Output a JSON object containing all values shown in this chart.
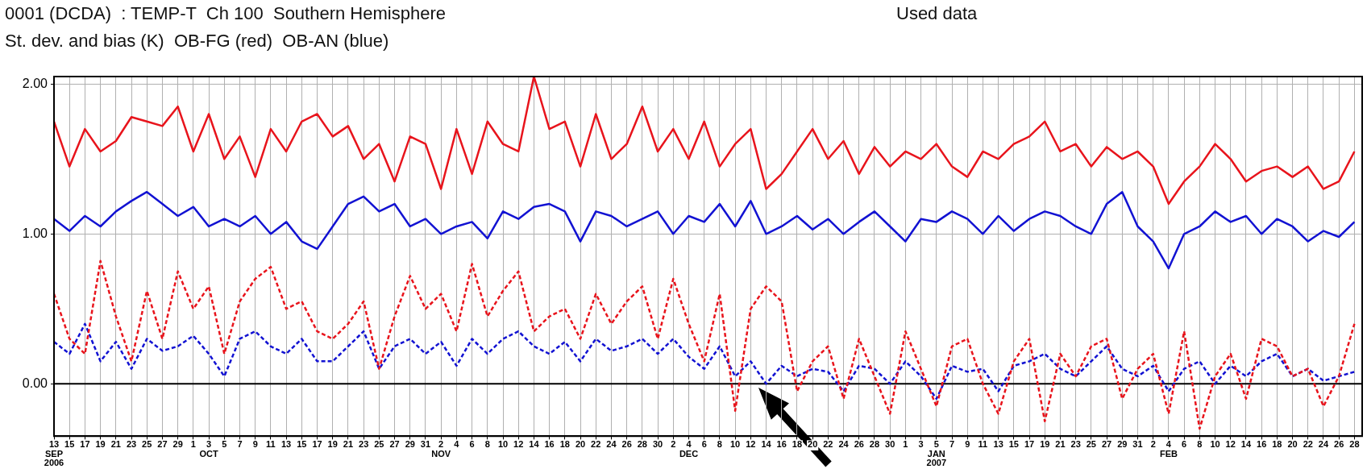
{
  "chart_data": {
    "type": "line",
    "title": "0001 (DCDA)  : TEMP-T  Ch 100  Southern Hemisphere",
    "subtitle": "St. dev. and bias (K)  OB-FG (red)  OB-AN (blue)",
    "annotations": [
      "Used data"
    ],
    "x": [
      "2006-09-13",
      "2006-09-15",
      "2006-09-17",
      "2006-09-19",
      "2006-09-21",
      "2006-09-23",
      "2006-09-25",
      "2006-09-27",
      "2006-09-29",
      "2006-10-01",
      "2006-10-03",
      "2006-10-05",
      "2006-10-07",
      "2006-10-09",
      "2006-10-11",
      "2006-10-13",
      "2006-10-15",
      "2006-10-17",
      "2006-10-19",
      "2006-10-21",
      "2006-10-23",
      "2006-10-25",
      "2006-10-27",
      "2006-10-29",
      "2006-10-31",
      "2006-11-02",
      "2006-11-04",
      "2006-11-06",
      "2006-11-08",
      "2006-11-10",
      "2006-11-12",
      "2006-11-14",
      "2006-11-16",
      "2006-11-18",
      "2006-11-20",
      "2006-11-22",
      "2006-11-24",
      "2006-11-26",
      "2006-11-28",
      "2006-11-30",
      "2006-12-02",
      "2006-12-04",
      "2006-12-06",
      "2006-12-08",
      "2006-12-10",
      "2006-12-12",
      "2006-12-14",
      "2006-12-16",
      "2006-12-18",
      "2006-12-20",
      "2006-12-22",
      "2006-12-24",
      "2006-12-26",
      "2006-12-28",
      "2006-12-30",
      "2007-01-01",
      "2007-01-03",
      "2007-01-05",
      "2007-01-07",
      "2007-01-09",
      "2007-01-11",
      "2007-01-13",
      "2007-01-15",
      "2007-01-17",
      "2007-01-19",
      "2007-01-21",
      "2007-01-23",
      "2007-01-25",
      "2007-01-27",
      "2007-01-29",
      "2007-01-31",
      "2007-02-02",
      "2007-02-04",
      "2007-02-06",
      "2007-02-08",
      "2007-02-10",
      "2007-02-12",
      "2007-02-14",
      "2007-02-16",
      "2007-02-18",
      "2007-02-20",
      "2007-02-22",
      "2007-02-24",
      "2007-02-26",
      "2007-02-28"
    ],
    "series": [
      {
        "color": "#e8141c",
        "line_style": "solid",
        "values": [
          1.75,
          1.45,
          1.7,
          1.55,
          1.62,
          1.78,
          1.75,
          1.72,
          1.85,
          1.55,
          1.8,
          1.5,
          1.65,
          1.38,
          1.7,
          1.55,
          1.75,
          1.8,
          1.65,
          1.72,
          1.5,
          1.6,
          1.35,
          1.65,
          1.6,
          1.3,
          1.7,
          1.4,
          1.75,
          1.6,
          1.55,
          2.05,
          1.7,
          1.75,
          1.45,
          1.8,
          1.5,
          1.6,
          1.85,
          1.55,
          1.7,
          1.5,
          1.75,
          1.45,
          1.6,
          1.7,
          1.3,
          1.4,
          1.55,
          1.7,
          1.5,
          1.62,
          1.4,
          1.58,
          1.45,
          1.55,
          1.5,
          1.6,
          1.45,
          1.38,
          1.55,
          1.5,
          1.6,
          1.65,
          1.75,
          1.55,
          1.6,
          1.45,
          1.58,
          1.5,
          1.55,
          1.45,
          1.2,
          1.35,
          1.45,
          1.6,
          1.5,
          1.35,
          1.42,
          1.45,
          1.38,
          1.45,
          1.3,
          1.35,
          1.55
        ]
      },
      {
        "color": "#1212d2",
        "line_style": "solid",
        "values": [
          1.1,
          1.02,
          1.12,
          1.05,
          1.15,
          1.22,
          1.28,
          1.2,
          1.12,
          1.18,
          1.05,
          1.1,
          1.05,
          1.12,
          1.0,
          1.08,
          0.95,
          0.9,
          1.05,
          1.2,
          1.25,
          1.15,
          1.2,
          1.05,
          1.1,
          1.0,
          1.05,
          1.08,
          0.97,
          1.15,
          1.1,
          1.18,
          1.2,
          1.15,
          0.95,
          1.15,
          1.12,
          1.05,
          1.1,
          1.15,
          1.0,
          1.12,
          1.08,
          1.2,
          1.05,
          1.22,
          1.0,
          1.05,
          1.12,
          1.03,
          1.1,
          1.0,
          1.08,
          1.15,
          1.05,
          0.95,
          1.1,
          1.08,
          1.15,
          1.1,
          1.0,
          1.12,
          1.02,
          1.1,
          1.15,
          1.12,
          1.05,
          1.0,
          1.2,
          1.28,
          1.05,
          0.95,
          0.77,
          1.0,
          1.05,
          1.15,
          1.08,
          1.12,
          1.0,
          1.1,
          1.05,
          0.95,
          1.02,
          0.98,
          1.08
        ]
      },
      {
        "color": "#e8141c",
        "line_style": "dashed",
        "values": [
          0.6,
          0.3,
          0.2,
          0.82,
          0.45,
          0.15,
          0.62,
          0.3,
          0.75,
          0.5,
          0.65,
          0.2,
          0.55,
          0.7,
          0.78,
          0.5,
          0.55,
          0.35,
          0.3,
          0.4,
          0.55,
          0.1,
          0.45,
          0.72,
          0.5,
          0.6,
          0.35,
          0.8,
          0.45,
          0.62,
          0.75,
          0.35,
          0.45,
          0.5,
          0.3,
          0.6,
          0.4,
          0.55,
          0.65,
          0.3,
          0.7,
          0.4,
          0.15,
          0.6,
          -0.18,
          0.5,
          0.65,
          0.55,
          -0.05,
          0.15,
          0.25,
          -0.1,
          0.3,
          0.05,
          -0.2,
          0.35,
          0.1,
          -0.15,
          0.25,
          0.3,
          0.0,
          -0.2,
          0.15,
          0.3,
          -0.25,
          0.2,
          0.05,
          0.25,
          0.3,
          -0.1,
          0.1,
          0.2,
          -0.2,
          0.35,
          -0.3,
          0.05,
          0.2,
          -0.1,
          0.3,
          0.25,
          0.05,
          0.1,
          -0.15,
          0.05,
          0.4
        ]
      },
      {
        "color": "#1212d2",
        "line_style": "dashed",
        "values": [
          0.28,
          0.2,
          0.4,
          0.15,
          0.28,
          0.1,
          0.3,
          0.22,
          0.25,
          0.32,
          0.2,
          0.05,
          0.3,
          0.35,
          0.25,
          0.2,
          0.3,
          0.15,
          0.15,
          0.25,
          0.35,
          0.1,
          0.25,
          0.3,
          0.2,
          0.28,
          0.12,
          0.3,
          0.2,
          0.3,
          0.35,
          0.25,
          0.2,
          0.28,
          0.15,
          0.3,
          0.22,
          0.25,
          0.3,
          0.2,
          0.3,
          0.18,
          0.1,
          0.25,
          0.05,
          0.15,
          0.0,
          0.12,
          0.05,
          0.1,
          0.08,
          -0.05,
          0.12,
          0.1,
          0.0,
          0.15,
          0.05,
          -0.1,
          0.12,
          0.08,
          0.1,
          -0.05,
          0.12,
          0.15,
          0.2,
          0.1,
          0.05,
          0.15,
          0.25,
          0.1,
          0.05,
          0.12,
          -0.05,
          0.1,
          0.15,
          0.0,
          0.12,
          0.05,
          0.15,
          0.2,
          0.05,
          0.1,
          0.02,
          0.05,
          0.08
        ]
      }
    ],
    "xlim": [
      "2006-09-13",
      "2007-03-01"
    ],
    "xticks": [
      {
        "value": "2006-09-13",
        "label": "13\nSEP\n2006"
      },
      {
        "value": "2006-09-15",
        "label": "15"
      },
      {
        "value": "2006-09-17",
        "label": "17"
      },
      {
        "value": "2006-09-19",
        "label": "19"
      },
      {
        "value": "2006-09-21",
        "label": "21"
      },
      {
        "value": "2006-09-23",
        "label": "23"
      },
      {
        "value": "2006-09-25",
        "label": "25"
      },
      {
        "value": "2006-09-27",
        "label": "27"
      },
      {
        "value": "2006-09-29",
        "label": "29"
      },
      {
        "value": "2006-10-01",
        "label": "1"
      },
      {
        "value": "2006-10-03",
        "label": "3\nOCT"
      },
      {
        "value": "2006-10-05",
        "label": "5"
      },
      {
        "value": "2006-10-07",
        "label": "7"
      },
      {
        "value": "2006-10-09",
        "label": "9"
      },
      {
        "value": "2006-10-11",
        "label": "11"
      },
      {
        "value": "2006-10-13",
        "label": "13"
      },
      {
        "value": "2006-10-15",
        "label": "15"
      },
      {
        "value": "2006-10-17",
        "label": "17"
      },
      {
        "value": "2006-10-19",
        "label": "19"
      },
      {
        "value": "2006-10-21",
        "label": "21"
      },
      {
        "value": "2006-10-23",
        "label": "23"
      },
      {
        "value": "2006-10-25",
        "label": "25"
      },
      {
        "value": "2006-10-27",
        "label": "27"
      },
      {
        "value": "2006-10-29",
        "label": "29"
      },
      {
        "value": "2006-10-31",
        "label": "31"
      },
      {
        "value": "2006-11-02",
        "label": "2\nNOV"
      },
      {
        "value": "2006-11-04",
        "label": "4"
      },
      {
        "value": "2006-11-06",
        "label": "6"
      },
      {
        "value": "2006-11-08",
        "label": "8"
      },
      {
        "value": "2006-11-10",
        "label": "10"
      },
      {
        "value": "2006-11-12",
        "label": "12"
      },
      {
        "value": "2006-11-14",
        "label": "14"
      },
      {
        "value": "2006-11-16",
        "label": "16"
      },
      {
        "value": "2006-11-18",
        "label": "18"
      },
      {
        "value": "2006-11-20",
        "label": "20"
      },
      {
        "value": "2006-11-22",
        "label": "22"
      },
      {
        "value": "2006-11-24",
        "label": "24"
      },
      {
        "value": "2006-11-26",
        "label": "26"
      },
      {
        "value": "2006-11-28",
        "label": "28"
      },
      {
        "value": "2006-11-30",
        "label": "30"
      },
      {
        "value": "2006-12-02",
        "label": "2"
      },
      {
        "value": "2006-12-04",
        "label": "4\nDEC"
      },
      {
        "value": "2006-12-06",
        "label": "6"
      },
      {
        "value": "2006-12-08",
        "label": "8"
      },
      {
        "value": "2006-12-10",
        "label": "10"
      },
      {
        "value": "2006-12-12",
        "label": "12"
      },
      {
        "value": "2006-12-14",
        "label": "14"
      },
      {
        "value": "2006-12-16",
        "label": "16"
      },
      {
        "value": "2006-12-18",
        "label": "18"
      },
      {
        "value": "2006-12-20",
        "label": "20"
      },
      {
        "value": "2006-12-22",
        "label": "22"
      },
      {
        "value": "2006-12-24",
        "label": "24"
      },
      {
        "value": "2006-12-26",
        "label": "26"
      },
      {
        "value": "2006-12-28",
        "label": "28"
      },
      {
        "value": "2006-12-30",
        "label": "30"
      },
      {
        "value": "2007-01-01",
        "label": "1"
      },
      {
        "value": "2007-01-03",
        "label": "3"
      },
      {
        "value": "2007-01-05",
        "label": "5\nJAN\n2007"
      },
      {
        "value": "2007-01-07",
        "label": "7"
      },
      {
        "value": "2007-01-09",
        "label": "9"
      },
      {
        "value": "2007-01-11",
        "label": "11"
      },
      {
        "value": "2007-01-13",
        "label": "13"
      },
      {
        "value": "2007-01-15",
        "label": "15"
      },
      {
        "value": "2007-01-17",
        "label": "17"
      },
      {
        "value": "2007-01-19",
        "label": "19"
      },
      {
        "value": "2007-01-21",
        "label": "21"
      },
      {
        "value": "2007-01-23",
        "label": "23"
      },
      {
        "value": "2007-01-25",
        "label": "25"
      },
      {
        "value": "2007-01-27",
        "label": "27"
      },
      {
        "value": "2007-01-29",
        "label": "29"
      },
      {
        "value": "2007-01-31",
        "label": "31"
      },
      {
        "value": "2007-02-02",
        "label": "2"
      },
      {
        "value": "2007-02-04",
        "label": "4\nFEB"
      },
      {
        "value": "2007-02-06",
        "label": "6"
      },
      {
        "value": "2007-02-08",
        "label": "8"
      },
      {
        "value": "2007-02-10",
        "label": "10"
      },
      {
        "value": "2007-02-12",
        "label": "12"
      },
      {
        "value": "2007-02-14",
        "label": "14"
      },
      {
        "value": "2007-02-16",
        "label": "16"
      },
      {
        "value": "2007-02-18",
        "label": "18"
      },
      {
        "value": "2007-02-20",
        "label": "20"
      },
      {
        "value": "2007-02-22",
        "label": "22"
      },
      {
        "value": "2007-02-24",
        "label": "24"
      },
      {
        "value": "2007-02-26",
        "label": "26"
      },
      {
        "value": "2007-02-28",
        "label": "28"
      }
    ],
    "ylim": [
      -0.35,
      2.05
    ],
    "yticks": [
      {
        "value": 0,
        "label": "0.00"
      },
      {
        "value": 1,
        "label": "1.00"
      },
      {
        "value": 2,
        "label": "2.00"
      }
    ],
    "ref_lines": [
      {
        "axis": "y",
        "value": 0,
        "color": "#000000"
      }
    ],
    "grid": true,
    "legend": false,
    "marker": "none"
  }
}
